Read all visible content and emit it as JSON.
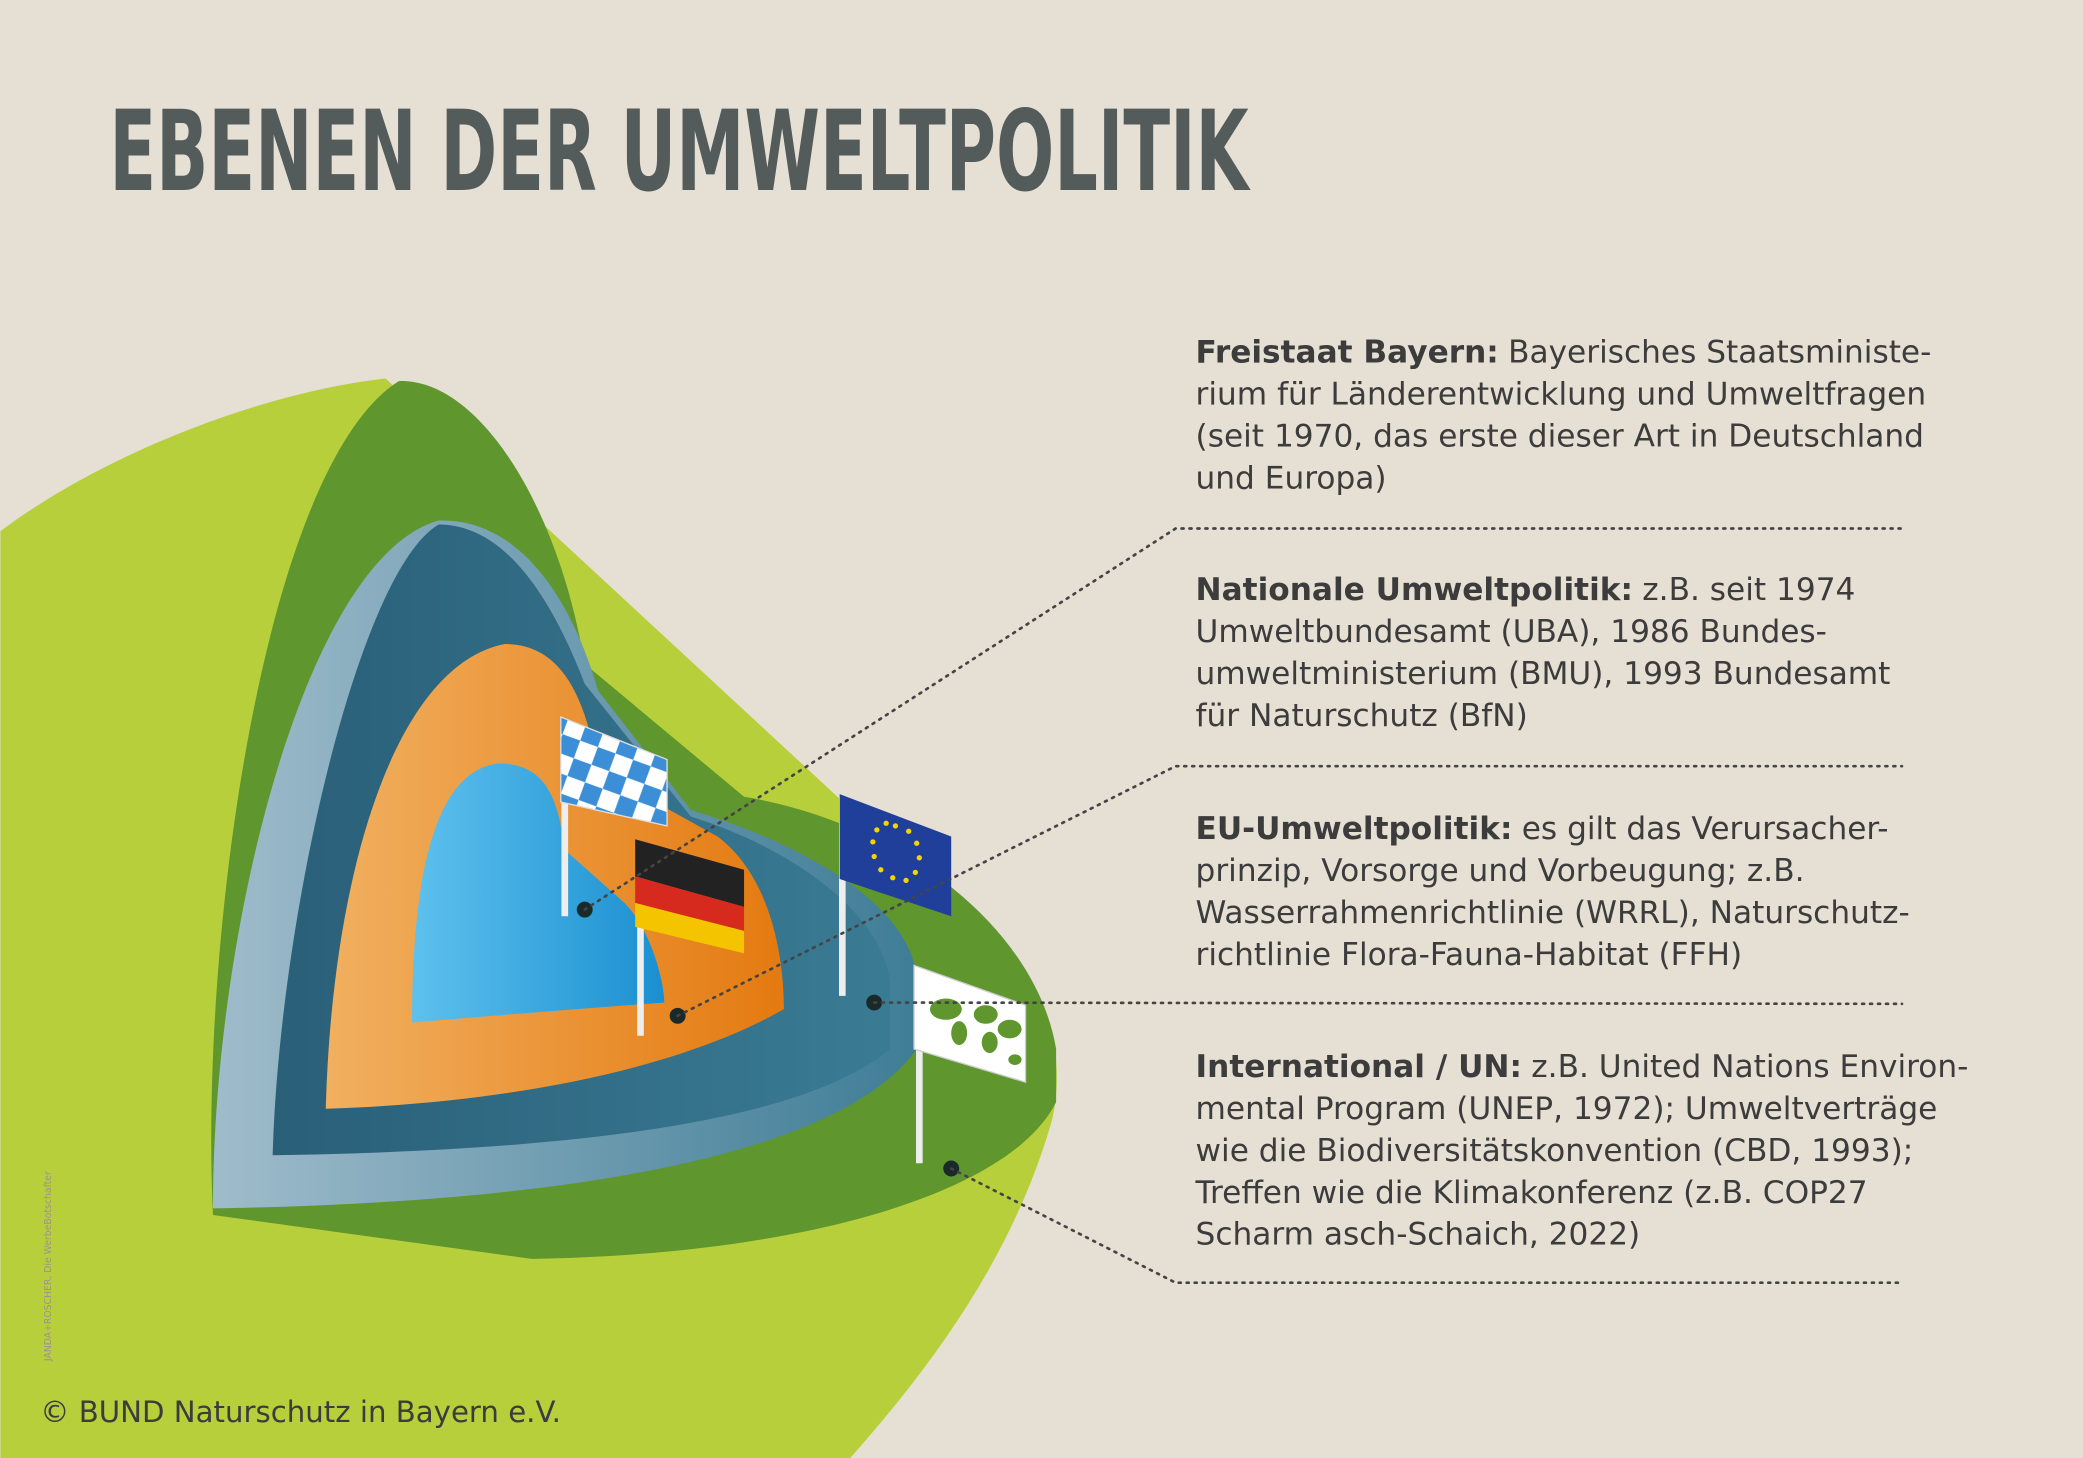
{
  "title": "EBENEN DER UMWELTPOLITIK",
  "items": [
    {
      "heading": "Freistaat Bayern:",
      "lines": [
        "Bayerisches Staatsministe-",
        "rium für Länderentwicklung und Umweltfragen",
        "(seit 1970, das erste dieser Art in Deutschland",
        "und Europa)"
      ]
    },
    {
      "heading": "Nationale Umweltpolitik:",
      "lines": [
        "z.B. seit 1974",
        "Umweltbundesamt (UBA), 1986 Bundes-",
        "umweltministerium (BMU), 1993 Bundesamt",
        "für Naturschutz (BfN)"
      ]
    },
    {
      "heading": "EU-Umweltpolitik:",
      "lines": [
        "es gilt das Verursacher-",
        "prinzip, Vorsorge und Vorbeugung; z.B.",
        "Wasserrahmenrichtlinie (WRRL), Naturschutz-",
        "richtlinie Flora-Fauna-Habitat (FFH)"
      ]
    },
    {
      "heading": "International / UN:",
      "lines": [
        "z.B. United Nations Environ-",
        "mental Program (UNEP, 1972); Umweltverträge",
        "wie die Biodiversitätskonvention (CBD, 1993);",
        "Treffen wie die Klimakonferenz (z.B. COP27",
        "Scharm asch-Schaich, 2022)"
      ]
    }
  ],
  "credit": "JANDA+ROSCHER, Die WerbeBotschafter",
  "copyright": "© BUND Naturschutz in Bayern e.V."
}
